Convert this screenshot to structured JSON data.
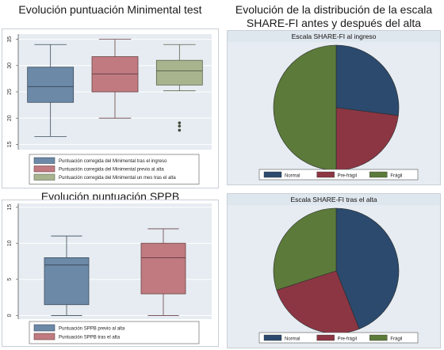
{
  "titles": {
    "mmse": "Evolución puntuación Minimental test",
    "share_line1": "Evolución de la distribución de la escala",
    "share_line2": "SHARE-FI antes y después del alta",
    "sppb": "Evolución puntuación SPPB"
  },
  "colors": {
    "blue": "#6d89a8",
    "red": "#c07a80",
    "green": "#a7b48e",
    "pie_blue": "#2b4a6d",
    "pie_red": "#8c3644",
    "pie_green": "#5c7a3a",
    "panel_bg": "#e6ecf1",
    "subtitle_bg": "#dfe7ee"
  },
  "chart_data": [
    {
      "type": "box",
      "id": "mmse",
      "title": "Evolución puntuación Minimental test",
      "ylim": [
        14,
        36
      ],
      "yticks": [
        15,
        20,
        25,
        30,
        35
      ],
      "grid": true,
      "series": [
        {
          "name": "Puntuación corregida del Minimental tras el ingreso",
          "min": 16.5,
          "q1": 23,
          "median": 26,
          "q3": 29.7,
          "max": 34,
          "outliers": [],
          "color": "blue"
        },
        {
          "name": "Puntuación corregida del Minimental previo al alta",
          "min": 20,
          "q1": 25,
          "median": 28.4,
          "q3": 31.7,
          "max": 35,
          "outliers": [],
          "color": "red"
        },
        {
          "name": "Puntuación corregida del Minimental un mes tras el alta",
          "min": 25.2,
          "q1": 26.3,
          "median": 29,
          "q3": 31,
          "max": 34,
          "outliers": [
            17.7,
            18.5,
            19.1
          ],
          "color": "green"
        }
      ],
      "legend_position": "bottom"
    },
    {
      "type": "box",
      "id": "sppb",
      "title": "Evolución puntuación SPPB",
      "ylim": [
        -0.5,
        15.5
      ],
      "yticks": [
        0,
        5,
        10,
        15
      ],
      "grid": true,
      "series": [
        {
          "name": "Puntuación SPPB previo al alta",
          "min": 0,
          "q1": 1.5,
          "median": 7,
          "q3": 8,
          "max": 11,
          "outliers": [],
          "color": "blue"
        },
        {
          "name": "Puntuación SPPB tras el alta",
          "min": 0,
          "q1": 3,
          "median": 8,
          "q3": 10,
          "max": 12,
          "outliers": [],
          "color": "red"
        }
      ],
      "legend_position": "bottom"
    },
    {
      "type": "pie",
      "id": "share_ingreso",
      "title": "Escala SHARE-FI al ingreso",
      "slices": [
        {
          "name": "Normal",
          "value": 27,
          "color": "pie_blue"
        },
        {
          "name": "Pre-frágil",
          "value": 23,
          "color": "pie_red"
        },
        {
          "name": "Frágil",
          "value": 50,
          "color": "pie_green"
        }
      ],
      "legend_position": "bottom"
    },
    {
      "type": "pie",
      "id": "share_alta",
      "title": "Escala SHARE-FI tras el alta",
      "slices": [
        {
          "name": "Normal",
          "value": 44,
          "color": "pie_blue"
        },
        {
          "name": "Pre-frágil",
          "value": 26,
          "color": "pie_red"
        },
        {
          "name": "Frágil",
          "value": 30,
          "color": "pie_green"
        }
      ],
      "legend_position": "bottom"
    }
  ]
}
